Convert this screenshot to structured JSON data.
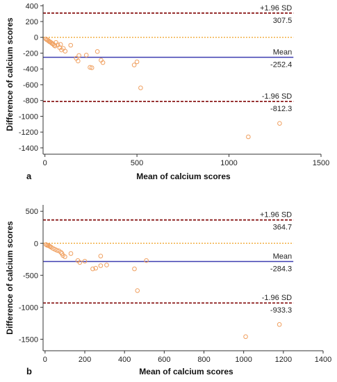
{
  "chart_data": [
    {
      "type": "scatter",
      "panel_label": "a",
      "xlabel": "Mean of calcium scores",
      "ylabel": "Difference of calcium scores",
      "xlim": [
        -10,
        1500
      ],
      "ylim": [
        -1480,
        420
      ],
      "x_ticks": [
        0,
        500,
        1000,
        1500
      ],
      "y_ticks": [
        400,
        200,
        0,
        -200,
        -400,
        -600,
        -800,
        -1000,
        -1200,
        -1400
      ],
      "reference_lines": [
        {
          "key": "upper",
          "top_label": "+1.96 SD",
          "value_label": "307.5",
          "value": 307.5,
          "style": "dashed",
          "color": "#8b1a1a"
        },
        {
          "key": "mean",
          "top_label": "Mean",
          "value_label": "-252.4",
          "value": -252.4,
          "style": "solid",
          "color": "#3b3bb0"
        },
        {
          "key": "lower",
          "top_label": "-1.96 SD",
          "value_label": "-812.3",
          "value": -812.3,
          "style": "dashed",
          "color": "#8b1a1a"
        }
      ],
      "zero_line": {
        "value": 0,
        "color": "#f0a020",
        "style": "dotted"
      },
      "line_extent_x": [
        -10,
        1350
      ],
      "point_color": "#f0a060",
      "points": [
        {
          "x": 5,
          "y": -20
        },
        {
          "x": 10,
          "y": -30
        },
        {
          "x": 15,
          "y": -35
        },
        {
          "x": 20,
          "y": -45
        },
        {
          "x": 25,
          "y": -55
        },
        {
          "x": 30,
          "y": -60
        },
        {
          "x": 35,
          "y": -70
        },
        {
          "x": 40,
          "y": -80
        },
        {
          "x": 45,
          "y": -85
        },
        {
          "x": 50,
          "y": -100
        },
        {
          "x": 55,
          "y": -110
        },
        {
          "x": 60,
          "y": -65
        },
        {
          "x": 70,
          "y": -95
        },
        {
          "x": 80,
          "y": -130
        },
        {
          "x": 85,
          "y": -90
        },
        {
          "x": 90,
          "y": -160
        },
        {
          "x": 100,
          "y": -140
        },
        {
          "x": 110,
          "y": -175
        },
        {
          "x": 140,
          "y": -100
        },
        {
          "x": 170,
          "y": -265
        },
        {
          "x": 180,
          "y": -300
        },
        {
          "x": 185,
          "y": -230
        },
        {
          "x": 225,
          "y": -225
        },
        {
          "x": 245,
          "y": -380
        },
        {
          "x": 255,
          "y": -385
        },
        {
          "x": 285,
          "y": -180
        },
        {
          "x": 305,
          "y": -290
        },
        {
          "x": 315,
          "y": -320
        },
        {
          "x": 485,
          "y": -350
        },
        {
          "x": 500,
          "y": -310
        },
        {
          "x": 520,
          "y": -640
        },
        {
          "x": 1105,
          "y": -1260
        },
        {
          "x": 1275,
          "y": -1090
        }
      ]
    },
    {
      "type": "scatter",
      "panel_label": "b",
      "xlabel": "Mean of calcium scores",
      "ylabel": "Difference of calcium scores",
      "xlim": [
        -10,
        1400
      ],
      "ylim": [
        -1680,
        600
      ],
      "x_ticks": [
        0,
        200,
        400,
        600,
        800,
        1000,
        1200,
        1400
      ],
      "y_ticks": [
        500,
        0,
        -500,
        -1000,
        -1500
      ],
      "reference_lines": [
        {
          "key": "upper",
          "top_label": "+1.96 SD",
          "value_label": "364.7",
          "value": 364.7,
          "style": "dashed",
          "color": "#8b1a1a"
        },
        {
          "key": "mean",
          "top_label": "Mean",
          "value_label": "-284.3",
          "value": -284.3,
          "style": "solid",
          "color": "#3b3bb0"
        },
        {
          "key": "lower",
          "top_label": "-1.96 SD",
          "value_label": "-933.3",
          "value": -933.3,
          "style": "dashed",
          "color": "#8b1a1a"
        }
      ],
      "zero_line": {
        "value": 0,
        "color": "#f0a020",
        "style": "dotted"
      },
      "line_extent_x": [
        -10,
        1250
      ],
      "point_color": "#f0a060",
      "points": [
        {
          "x": 5,
          "y": -20
        },
        {
          "x": 10,
          "y": -30
        },
        {
          "x": 15,
          "y": -35
        },
        {
          "x": 20,
          "y": -40
        },
        {
          "x": 25,
          "y": -50
        },
        {
          "x": 30,
          "y": -60
        },
        {
          "x": 40,
          "y": -80
        },
        {
          "x": 50,
          "y": -95
        },
        {
          "x": 60,
          "y": -110
        },
        {
          "x": 70,
          "y": -120
        },
        {
          "x": 80,
          "y": -140
        },
        {
          "x": 85,
          "y": -160
        },
        {
          "x": 90,
          "y": -190
        },
        {
          "x": 100,
          "y": -210
        },
        {
          "x": 130,
          "y": -160
        },
        {
          "x": 165,
          "y": -270
        },
        {
          "x": 175,
          "y": -300
        },
        {
          "x": 200,
          "y": -280
        },
        {
          "x": 240,
          "y": -400
        },
        {
          "x": 255,
          "y": -390
        },
        {
          "x": 280,
          "y": -200
        },
        {
          "x": 280,
          "y": -350
        },
        {
          "x": 310,
          "y": -340
        },
        {
          "x": 450,
          "y": -400
        },
        {
          "x": 465,
          "y": -740
        },
        {
          "x": 510,
          "y": -270
        },
        {
          "x": 1010,
          "y": -1460
        },
        {
          "x": 1180,
          "y": -1270
        }
      ]
    }
  ]
}
